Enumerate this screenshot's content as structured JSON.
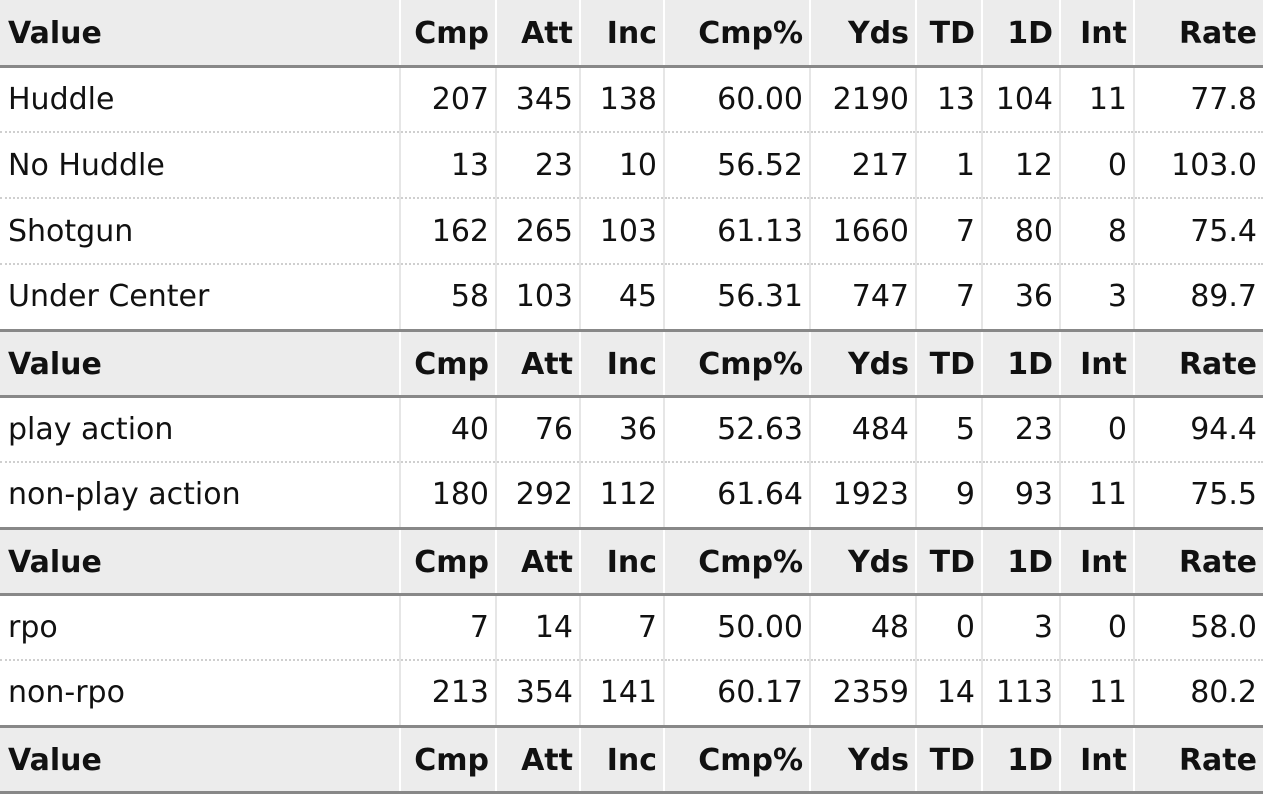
{
  "headers": [
    "Value",
    "Cmp",
    "Att",
    "Inc",
    "Cmp%",
    "Yds",
    "TD",
    "1D",
    "Int",
    "Rate"
  ],
  "sections": [
    {
      "rows": [
        [
          "Huddle",
          "207",
          "345",
          "138",
          "60.00",
          "2190",
          "13",
          "104",
          "11",
          "77.8"
        ],
        [
          "No Huddle",
          "13",
          "23",
          "10",
          "56.52",
          "217",
          "1",
          "12",
          "0",
          "103.0"
        ],
        [
          "Shotgun",
          "162",
          "265",
          "103",
          "61.13",
          "1660",
          "7",
          "80",
          "8",
          "75.4"
        ],
        [
          "Under Center",
          "58",
          "103",
          "45",
          "56.31",
          "747",
          "7",
          "36",
          "3",
          "89.7"
        ]
      ]
    },
    {
      "rows": [
        [
          "play action",
          "40",
          "76",
          "36",
          "52.63",
          "484",
          "5",
          "23",
          "0",
          "94.4"
        ],
        [
          "non-play action",
          "180",
          "292",
          "112",
          "61.64",
          "1923",
          "9",
          "93",
          "11",
          "75.5"
        ]
      ]
    },
    {
      "rows": [
        [
          "rpo",
          "7",
          "14",
          "7",
          "50.00",
          "48",
          "0",
          "3",
          "0",
          "58.0"
        ],
        [
          "non-rpo",
          "213",
          "354",
          "141",
          "60.17",
          "2359",
          "14",
          "113",
          "11",
          "80.2"
        ]
      ]
    },
    {
      "rows": []
    }
  ],
  "colors": {
    "header_bg": "#ececec",
    "rule": "#888888",
    "text": "#111111"
  }
}
